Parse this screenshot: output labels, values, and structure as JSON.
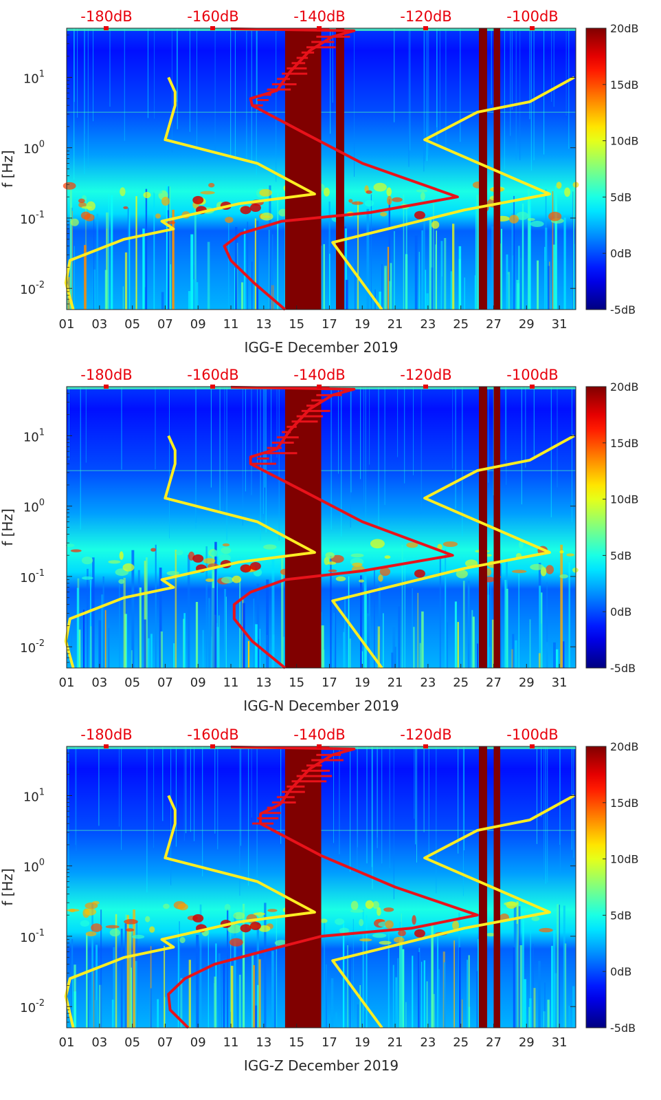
{
  "figure": {
    "background": "#ffffff"
  },
  "chart_data": [
    {
      "type": "heatmap",
      "panel": "E",
      "title": "",
      "xlabel": "IGG-E December 2019",
      "ylabel": "f [Hz]",
      "x_ticks": [
        "01",
        "03",
        "05",
        "07",
        "09",
        "11",
        "13",
        "15",
        "17",
        "19",
        "21",
        "23",
        "25",
        "27",
        "29",
        "31"
      ],
      "x_range_days": [
        1,
        32
      ],
      "y_scale": "log",
      "y_range_hz": [
        0.005,
        50
      ],
      "y_ticks": [
        {
          "base": "10",
          "exp": "1",
          "value": 10
        },
        {
          "base": "10",
          "exp": "0",
          "value": 1
        },
        {
          "base": "10",
          "exp": "-1",
          "value": 0.1
        },
        {
          "base": "10",
          "exp": "-2",
          "value": 0.01
        }
      ],
      "top_axis_labels": [
        "-180dB",
        "-160dB",
        "-140dB",
        "-120dB",
        "-100dB"
      ],
      "colorbar": {
        "colormap": "jet",
        "range_db": [
          -5,
          20
        ],
        "ticks": [
          "20dB",
          "15dB",
          "10dB",
          "5dB",
          "0dB",
          "-5dB"
        ]
      },
      "data_gaps_days": [
        [
          14.3,
          16.5
        ],
        [
          17.4,
          17.9
        ],
        [
          26.1,
          26.6
        ],
        [
          27.0,
          27.4
        ]
      ],
      "series": [
        {
          "color": "#ffee22",
          "points": [
            [
              1.4,
              0.005
            ],
            [
              0.95,
              0.012
            ],
            [
              1.2,
              0.025
            ],
            [
              4.5,
              0.05
            ],
            [
              7.5,
              0.07
            ],
            [
              6.8,
              0.09
            ],
            [
              11.5,
              0.16
            ],
            [
              16.1,
              0.22
            ],
            [
              12.6,
              0.6
            ],
            [
              7.0,
              1.3
            ],
            [
              7.6,
              4.0
            ],
            [
              7.6,
              6.2
            ],
            [
              7.2,
              10
            ],
            [
              null,
              null
            ],
            [
              20.2,
              0.005
            ],
            [
              17.2,
              0.045
            ],
            [
              25.2,
              0.13
            ],
            [
              30.4,
              0.22
            ],
            [
              22.8,
              1.3
            ],
            [
              26.0,
              3.2
            ],
            [
              29.2,
              4.5
            ],
            [
              31.9,
              10
            ]
          ]
        },
        {
          "color": "#e8121a",
          "points": [
            [
              14.3,
              0.005
            ],
            [
              12.4,
              0.012
            ],
            [
              11.0,
              0.025
            ],
            [
              10.6,
              0.04
            ],
            [
              11.6,
              0.06
            ],
            [
              14.1,
              0.09
            ],
            [
              19.5,
              0.12
            ],
            [
              24.8,
              0.2
            ],
            [
              19.0,
              0.6
            ],
            [
              15.5,
              1.6
            ],
            [
              12.3,
              4.0
            ],
            [
              12.2,
              5.0
            ],
            [
              13.8,
              6.5
            ],
            [
              14.6,
              12
            ],
            [
              15.8,
              24
            ],
            [
              17.2,
              38
            ],
            [
              18.5,
              46
            ],
            [
              13.6,
              48
            ],
            [
              11.0,
              49
            ]
          ]
        }
      ]
    },
    {
      "type": "heatmap",
      "panel": "N",
      "title": "",
      "xlabel": "IGG-N December 2019",
      "ylabel": "f [Hz]",
      "x_ticks": [
        "01",
        "03",
        "05",
        "07",
        "09",
        "11",
        "13",
        "15",
        "17",
        "19",
        "21",
        "23",
        "25",
        "27",
        "29",
        "31"
      ],
      "x_range_days": [
        1,
        32
      ],
      "y_scale": "log",
      "y_range_hz": [
        0.005,
        50
      ],
      "y_ticks": [
        {
          "base": "10",
          "exp": "1",
          "value": 10
        },
        {
          "base": "10",
          "exp": "0",
          "value": 1
        },
        {
          "base": "10",
          "exp": "-1",
          "value": 0.1
        },
        {
          "base": "10",
          "exp": "-2",
          "value": 0.01
        }
      ],
      "top_axis_labels": [
        "-180dB",
        "-160dB",
        "-140dB",
        "-120dB",
        "-100dB"
      ],
      "colorbar": {
        "colormap": "jet",
        "range_db": [
          -5,
          20
        ],
        "ticks": [
          "20dB",
          "15dB",
          "10dB",
          "5dB",
          "0dB",
          "-5dB"
        ]
      },
      "data_gaps_days": [
        [
          14.3,
          16.5
        ],
        [
          26.1,
          26.6
        ],
        [
          27.0,
          27.4
        ]
      ],
      "series": [
        {
          "color": "#ffee22",
          "points": [
            [
              1.4,
              0.005
            ],
            [
              0.95,
              0.012
            ],
            [
              1.2,
              0.025
            ],
            [
              4.5,
              0.05
            ],
            [
              7.5,
              0.07
            ],
            [
              6.8,
              0.09
            ],
            [
              11.5,
              0.16
            ],
            [
              16.1,
              0.22
            ],
            [
              12.6,
              0.6
            ],
            [
              7.0,
              1.3
            ],
            [
              7.6,
              4.0
            ],
            [
              7.6,
              6.2
            ],
            [
              7.2,
              10
            ],
            [
              null,
              null
            ],
            [
              20.2,
              0.005
            ],
            [
              17.2,
              0.045
            ],
            [
              25.2,
              0.13
            ],
            [
              30.4,
              0.22
            ],
            [
              22.8,
              1.3
            ],
            [
              26.0,
              3.2
            ],
            [
              29.2,
              4.5
            ],
            [
              31.9,
              10
            ]
          ]
        },
        {
          "color": "#e8121a",
          "points": [
            [
              14.3,
              0.005
            ],
            [
              12.3,
              0.012
            ],
            [
              11.2,
              0.025
            ],
            [
              11.2,
              0.04
            ],
            [
              12.2,
              0.06
            ],
            [
              14.3,
              0.09
            ],
            [
              19.0,
              0.12
            ],
            [
              24.5,
              0.2
            ],
            [
              19.0,
              0.6
            ],
            [
              15.5,
              1.6
            ],
            [
              12.2,
              4.0
            ],
            [
              12.2,
              5.0
            ],
            [
              13.8,
              6.5
            ],
            [
              14.6,
              12
            ],
            [
              15.8,
              24
            ],
            [
              17.2,
              38
            ],
            [
              18.5,
              46
            ],
            [
              13.6,
              48
            ],
            [
              11.0,
              49
            ]
          ]
        }
      ]
    },
    {
      "type": "heatmap",
      "panel": "Z",
      "title": "",
      "xlabel": "IGG-Z December 2019",
      "ylabel": "f [Hz]",
      "x_ticks": [
        "01",
        "03",
        "05",
        "07",
        "09",
        "11",
        "13",
        "15",
        "17",
        "19",
        "21",
        "23",
        "25",
        "27",
        "29",
        "31"
      ],
      "x_range_days": [
        1,
        32
      ],
      "y_scale": "log",
      "y_range_hz": [
        0.005,
        50
      ],
      "y_ticks": [
        {
          "base": "10",
          "exp": "1",
          "value": 10
        },
        {
          "base": "10",
          "exp": "0",
          "value": 1
        },
        {
          "base": "10",
          "exp": "-1",
          "value": 0.1
        },
        {
          "base": "10",
          "exp": "-2",
          "value": 0.01
        }
      ],
      "top_axis_labels": [
        "-180dB",
        "-160dB",
        "-140dB",
        "-120dB",
        "-100dB"
      ],
      "colorbar": {
        "colormap": "jet",
        "range_db": [
          -5,
          20
        ],
        "ticks": [
          "20dB",
          "15dB",
          "10dB",
          "5dB",
          "0dB",
          "-5dB"
        ]
      },
      "data_gaps_days": [
        [
          14.3,
          16.5
        ],
        [
          26.1,
          26.6
        ],
        [
          27.0,
          27.4
        ]
      ],
      "series": [
        {
          "color": "#ffee22",
          "points": [
            [
              1.4,
              0.005
            ],
            [
              0.95,
              0.014
            ],
            [
              1.2,
              0.025
            ],
            [
              4.5,
              0.05
            ],
            [
              7.5,
              0.07
            ],
            [
              6.8,
              0.09
            ],
            [
              11.5,
              0.16
            ],
            [
              16.1,
              0.22
            ],
            [
              12.6,
              0.6
            ],
            [
              7.0,
              1.3
            ],
            [
              7.6,
              4.0
            ],
            [
              7.6,
              6.2
            ],
            [
              7.2,
              10
            ],
            [
              null,
              null
            ],
            [
              20.2,
              0.005
            ],
            [
              17.2,
              0.045
            ],
            [
              25.2,
              0.13
            ],
            [
              30.4,
              0.22
            ],
            [
              22.8,
              1.3
            ],
            [
              26.0,
              3.2
            ],
            [
              29.2,
              4.5
            ],
            [
              31.9,
              10
            ]
          ]
        },
        {
          "color": "#e8121a",
          "points": [
            [
              8.4,
              0.005
            ],
            [
              7.3,
              0.009
            ],
            [
              7.2,
              0.015
            ],
            [
              8.2,
              0.025
            ],
            [
              10.0,
              0.04
            ],
            [
              13.4,
              0.065
            ],
            [
              16.5,
              0.1
            ],
            [
              22.0,
              0.13
            ],
            [
              26.0,
              0.2
            ],
            [
              21.0,
              0.5
            ],
            [
              16.5,
              1.4
            ],
            [
              12.8,
              4.0
            ],
            [
              12.8,
              5.5
            ],
            [
              14.0,
              7.5
            ],
            [
              14.6,
              12
            ],
            [
              15.8,
              24
            ],
            [
              17.2,
              38
            ],
            [
              18.5,
              46
            ],
            [
              13.6,
              48
            ],
            [
              11.0,
              49
            ]
          ]
        }
      ]
    }
  ]
}
